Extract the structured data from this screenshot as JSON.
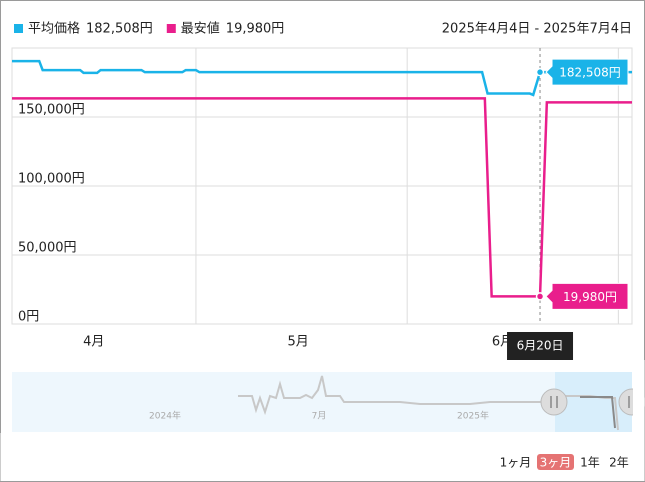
{
  "chart_data": {
    "type": "line",
    "date_range": "2025年4月4日 - 2025年7月4日",
    "xlim": [
      0,
      91
    ],
    "ylim": [
      0,
      200000
    ],
    "yticks": [
      {
        "value": 0,
        "label": "0円"
      },
      {
        "value": 50000,
        "label": "50,000円"
      },
      {
        "value": 100000,
        "label": "100,000円"
      },
      {
        "value": 150000,
        "label": "150,000円"
      }
    ],
    "xticks": [
      {
        "value": 12,
        "label": "4月"
      },
      {
        "value": 42,
        "label": "5月"
      },
      {
        "value": 72,
        "label": "6月"
      }
    ],
    "xgrid": [
      27,
      58,
      89
    ],
    "grid": true,
    "tooltip": {
      "x": 77.5,
      "label": "6月20日"
    },
    "series": [
      {
        "name": "平均価格",
        "color": "#1ab3e8",
        "current_label": "182,508円",
        "x": [
          0,
          4,
          4.5,
          10,
          10.5,
          12.5,
          13,
          19,
          19.5,
          25,
          25.5,
          27,
          27.5,
          69,
          69.8,
          76,
          76.5,
          77.5,
          91
        ],
        "values": [
          190500,
          190500,
          184000,
          184000,
          182000,
          182000,
          184000,
          184000,
          182500,
          182500,
          184000,
          184000,
          182500,
          182500,
          167000,
          167000,
          166000,
          182508,
          182508
        ]
      },
      {
        "name": "最安値",
        "color": "#e91e8c",
        "current_label": "19,980円",
        "x": [
          0,
          69.4,
          70.4,
          77.5,
          78.5,
          91
        ],
        "values": [
          163500,
          163500,
          19980,
          19980,
          160600,
          160600
        ]
      }
    ]
  },
  "navigator": {
    "labels": [
      "2024年",
      "7月",
      "2025年"
    ],
    "buttons": [
      "1ヶ月",
      "3ヶ月",
      "1年",
      "2年"
    ],
    "active": 1
  }
}
